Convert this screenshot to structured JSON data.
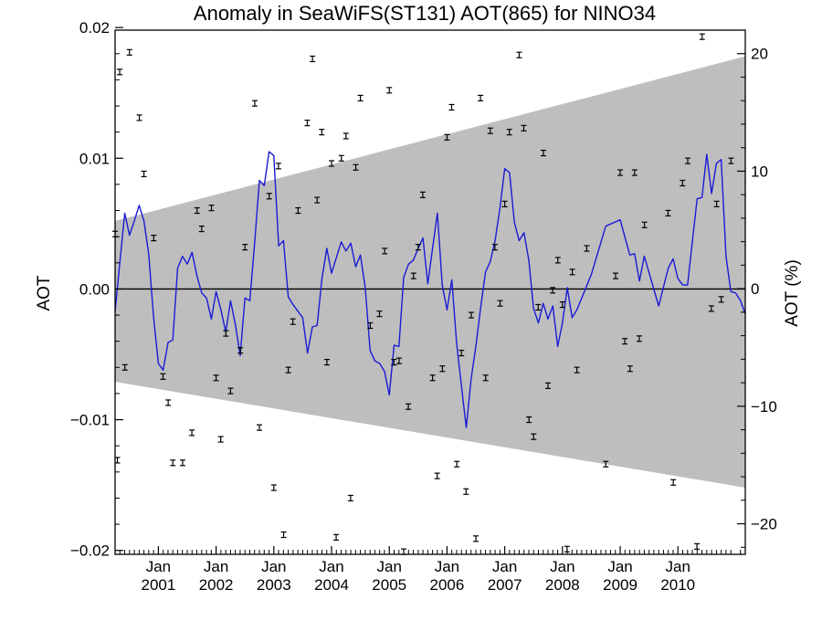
{
  "chart_data": {
    "type": "line",
    "title": "Anomaly in SeaWiFS(ST131) AOT(865) for NINO34",
    "ylabel": "AOT",
    "ylabel_right": "AOT (%)",
    "xlim": [
      2000.0,
      2010.917
    ],
    "ylim": [
      -0.0203,
      0.0198
    ],
    "ylim_right": [
      -22.6,
      22.0
    ],
    "grid": false,
    "left_ticks": [
      {
        "value": 0.02,
        "label": "0.02"
      },
      {
        "value": 0.01,
        "label": "0.01"
      },
      {
        "value": 0.0,
        "label": "0.00"
      },
      {
        "value": -0.01,
        "label": "−0.01"
      },
      {
        "value": -0.02,
        "label": "−0.02"
      }
    ],
    "right_ticks": [
      {
        "value": 20,
        "label": "20"
      },
      {
        "value": 10,
        "label": "10"
      },
      {
        "value": 0,
        "label": "0"
      },
      {
        "value": -10,
        "label": "−10"
      },
      {
        "value": -20,
        "label": "−20"
      }
    ],
    "x_ticks": [
      {
        "value": 2000.75,
        "month": "Jan",
        "year": "2001"
      },
      {
        "value": 2001.75,
        "month": "Jan",
        "year": "2002"
      },
      {
        "value": 2002.75,
        "month": "Jan",
        "year": "2003"
      },
      {
        "value": 2003.75,
        "month": "Jan",
        "year": "2004"
      },
      {
        "value": 2004.75,
        "month": "Jan",
        "year": "2005"
      },
      {
        "value": 2005.75,
        "month": "Jan",
        "year": "2006"
      },
      {
        "value": 2006.75,
        "month": "Jan",
        "year": "2007"
      },
      {
        "value": 2007.75,
        "month": "Jan",
        "year": "2008"
      },
      {
        "value": 2008.75,
        "month": "Jan",
        "year": "2009"
      },
      {
        "value": 2009.75,
        "month": "Jan",
        "year": "2010"
      }
    ],
    "colors": {
      "band": "#bebebe",
      "line": "#1a1ad6",
      "zero_line": "#000000",
      "error_bars": "#000000"
    },
    "confidence_band": {
      "upper": [
        [
          2000.0,
          0.0052
        ],
        [
          2010.917,
          0.0178
        ]
      ],
      "lower": [
        [
          2000.0,
          -0.0071
        ],
        [
          2010.917,
          -0.0152
        ]
      ]
    },
    "series": [
      {
        "type": "line",
        "x": [
          2000.0,
          2000.083,
          2000.167,
          2000.25,
          2000.333,
          2000.417,
          2000.5,
          2000.583,
          2000.667,
          2000.75,
          2000.833,
          2000.917,
          2001.0,
          2001.083,
          2001.167,
          2001.25,
          2001.333,
          2001.417,
          2001.5,
          2001.583,
          2001.667,
          2001.75,
          2001.833,
          2001.917,
          2002.0,
          2002.083,
          2002.167,
          2002.25,
          2002.333,
          2002.417,
          2002.5,
          2002.583,
          2002.667,
          2002.75,
          2002.833,
          2002.917,
          2003.0,
          2003.083,
          2003.167,
          2003.25,
          2003.333,
          2003.417,
          2003.5,
          2003.583,
          2003.667,
          2003.75,
          2003.833,
          2003.917,
          2004.0,
          2004.083,
          2004.167,
          2004.25,
          2004.333,
          2004.417,
          2004.5,
          2004.583,
          2004.667,
          2004.75,
          2004.833,
          2004.917,
          2005.0,
          2005.083,
          2005.167,
          2005.25,
          2005.333,
          2005.417,
          2005.5,
          2005.583,
          2005.667,
          2005.75,
          2005.833,
          2005.917,
          2006.0,
          2006.083,
          2006.167,
          2006.25,
          2006.333,
          2006.417,
          2006.5,
          2006.583,
          2006.667,
          2006.75,
          2006.833,
          2006.917,
          2007.0,
          2007.083,
          2007.167,
          2007.25,
          2007.333,
          2007.417,
          2007.5,
          2007.583,
          2007.667,
          2007.75,
          2007.833,
          2007.917,
          2008.0,
          2008.25,
          2008.5,
          2008.75,
          2008.917,
          2009.0,
          2009.083,
          2009.167,
          2009.417,
          2009.583,
          2009.667,
          2009.75,
          2009.833,
          2009.917,
          2010.0,
          2010.083,
          2010.167,
          2010.25,
          2010.333,
          2010.417,
          2010.5,
          2010.583,
          2010.667,
          2010.75,
          2010.833,
          2010.917
        ],
        "y": [
          -0.0017,
          0.002,
          0.0058,
          0.0041,
          0.0052,
          0.0064,
          0.0052,
          0.0027,
          -0.0022,
          -0.0057,
          -0.0062,
          -0.0041,
          -0.0039,
          0.0016,
          0.0025,
          0.0019,
          0.0028,
          0.001,
          -0.0003,
          -0.0007,
          -0.0023,
          -0.0002,
          -0.0016,
          -0.0033,
          -0.0009,
          -0.0027,
          -0.0051,
          -0.0007,
          -0.0009,
          0.0035,
          0.0083,
          0.0079,
          0.0105,
          0.0102,
          0.0033,
          0.0037,
          -0.0006,
          -0.0012,
          -0.0017,
          -0.0022,
          -0.0049,
          -0.0029,
          -0.0028,
          0.0008,
          0.0031,
          0.0012,
          0.0024,
          0.0036,
          0.0029,
          0.0035,
          0.0017,
          0.0026,
          0.0001,
          -0.0047,
          -0.0055,
          -0.0057,
          -0.0063,
          -0.0081,
          -0.0043,
          -0.0044,
          0.0009,
          0.0019,
          0.0022,
          0.0031,
          0.0039,
          0.0004,
          0.0031,
          0.0058,
          0.0003,
          -0.0016,
          0.0007,
          -0.0042,
          -0.0074,
          -0.0106,
          -0.0069,
          -0.0044,
          -0.0014,
          0.0013,
          0.0021,
          0.0037,
          0.0062,
          0.0092,
          0.0089,
          0.0051,
          0.0037,
          0.0043,
          0.0022,
          -0.0015,
          -0.0026,
          -0.0011,
          -0.0023,
          -0.0013,
          -0.0044,
          -0.0026,
          0.0001,
          -0.0022,
          -0.0016,
          0.0011,
          0.0048,
          0.0053,
          0.0026,
          0.0027,
          0.0006,
          0.0025,
          -0.0013,
          0.0016,
          0.0023,
          0.0008,
          0.0003,
          0.0003,
          0.0036,
          0.0069,
          0.007,
          0.0103,
          0.0073,
          0.0096,
          0.0099,
          0.0025,
          -0.0002,
          -0.0003,
          -0.0009,
          -0.0019
        ]
      },
      {
        "type": "errorbar",
        "x": [
          2000.0,
          2000.04,
          2000.17,
          2000.25,
          2000.08,
          2000.42,
          2000.5,
          2000.67,
          2000.83,
          2000.92,
          2001.0,
          2001.17,
          2001.33,
          2001.42,
          2001.5,
          2001.67,
          2001.75,
          2001.83,
          2001.92,
          2002.0,
          2002.17,
          2002.25,
          2002.42,
          2002.5,
          2002.67,
          2002.75,
          2002.83,
          2002.92,
          2003.0,
          2003.08,
          2003.17,
          2003.33,
          2003.42,
          2003.5,
          2003.58,
          2003.67,
          2003.75,
          2003.83,
          2003.92,
          2004.0,
          2004.08,
          2004.17,
          2004.25,
          2004.42,
          2004.58,
          2004.67,
          2004.75,
          2004.83,
          2004.92,
          2005.0,
          2005.08,
          2005.17,
          2005.25,
          2005.33,
          2005.5,
          2005.58,
          2005.67,
          2005.75,
          2005.83,
          2005.92,
          2006.0,
          2006.08,
          2006.17,
          2006.25,
          2006.33,
          2006.42,
          2006.5,
          2006.58,
          2006.67,
          2006.75,
          2006.83,
          2007.0,
          2007.08,
          2007.17,
          2007.25,
          2007.33,
          2007.42,
          2007.5,
          2007.58,
          2007.67,
          2007.75,
          2007.83,
          2007.92,
          2008.0,
          2008.17,
          2008.5,
          2008.67,
          2008.75,
          2008.83,
          2008.92,
          2009.0,
          2009.08,
          2009.17,
          2009.58,
          2009.67,
          2009.83,
          2009.92,
          2010.08,
          2010.17,
          2010.33,
          2010.42,
          2010.5,
          2010.67
        ],
        "y": [
          0.0042,
          -0.0131,
          -0.006,
          0.0181,
          0.0166,
          0.0131,
          0.0088,
          0.0039,
          -0.0067,
          -0.0087,
          -0.0133,
          -0.0133,
          -0.011,
          0.006,
          0.0046,
          0.0062,
          -0.0068,
          -0.0115,
          -0.0034,
          -0.0078,
          -0.0047,
          0.0032,
          0.0142,
          -0.0106,
          0.0071,
          -0.0152,
          0.0094,
          -0.0188,
          -0.0062,
          -0.0025,
          0.006,
          0.0127,
          0.0176,
          0.0068,
          0.012,
          -0.0056,
          0.0096,
          -0.019,
          0.01,
          0.0117,
          -0.016,
          0.0093,
          0.0146,
          -0.0028,
          -0.0019,
          0.0029,
          0.0152,
          -0.0056,
          -0.0055,
          -0.0201,
          -0.009,
          0.001,
          0.0032,
          0.0072,
          -0.0068,
          -0.0143,
          -0.0061,
          0.0116,
          0.0139,
          -0.0134,
          -0.0049,
          -0.0155,
          -0.002,
          -0.0191,
          0.0146,
          -0.0068,
          0.0121,
          0.0032,
          -0.0011,
          0.0065,
          0.012,
          0.0179,
          0.0123,
          -0.01,
          -0.0113,
          -0.0014,
          0.0104,
          -0.0074,
          -0.0001,
          0.0022,
          -0.0012,
          -0.0199,
          0.0013,
          -0.0062,
          0.0031,
          -0.0134,
          0.001,
          0.0089,
          -0.004,
          -0.0061,
          0.0089,
          -0.0038,
          0.0049,
          0.0058,
          -0.0148,
          0.0081,
          0.0098,
          -0.0197,
          0.0193,
          -0.0015,
          0.0065,
          -0.0008,
          0.0098
        ]
      }
    ]
  }
}
